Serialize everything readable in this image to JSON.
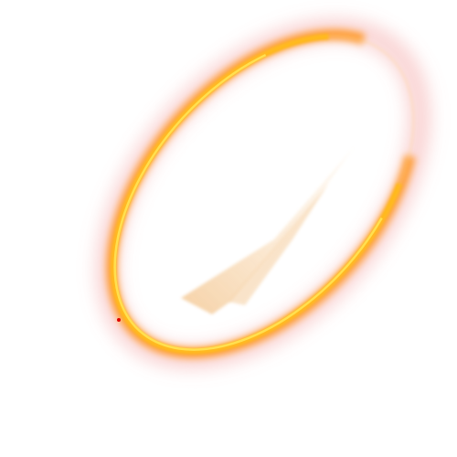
{
  "artwork": {
    "subject": "glowing-ellipse-ring",
    "colors": {
      "background": "#ffffff",
      "ring_core": "#ffe14a",
      "ring_mid": "#ffb800",
      "ring_outer": "#ff8a00",
      "glow_pink": "#f08a8a",
      "inner_streak": "#f3c38a",
      "inner_streak_light": "#fbe3c4",
      "dot": "#e00000"
    }
  }
}
